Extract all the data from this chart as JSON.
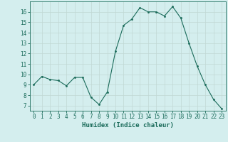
{
  "x": [
    0,
    1,
    2,
    3,
    4,
    5,
    6,
    7,
    8,
    9,
    10,
    11,
    12,
    13,
    14,
    15,
    16,
    17,
    18,
    19,
    20,
    21,
    22,
    23
  ],
  "y": [
    9.0,
    9.8,
    9.5,
    9.4,
    8.9,
    9.7,
    9.7,
    7.8,
    7.1,
    8.3,
    12.2,
    14.7,
    15.3,
    16.4,
    16.0,
    16.0,
    15.6,
    16.5,
    15.4,
    13.0,
    10.8,
    9.0,
    7.6,
    6.7
  ],
  "xlabel": "Humidex (Indice chaleur)",
  "xlim": [
    -0.5,
    23.5
  ],
  "ylim": [
    6.5,
    17.0
  ],
  "yticks": [
    7,
    8,
    9,
    10,
    11,
    12,
    13,
    14,
    15,
    16
  ],
  "xticks": [
    0,
    1,
    2,
    3,
    4,
    5,
    6,
    7,
    8,
    9,
    10,
    11,
    12,
    13,
    14,
    15,
    16,
    17,
    18,
    19,
    20,
    21,
    22,
    23
  ],
  "line_color": "#1a6b5a",
  "marker_color": "#1a6b5a",
  "bg_color": "#d4eeee",
  "grid_color": "#c0d8d4",
  "axis_color": "#1a6b5a",
  "label_color": "#1a6b5a",
  "tick_color": "#1a6b5a",
  "xlabel_fontsize": 6.5,
  "tick_fontsize": 5.5
}
